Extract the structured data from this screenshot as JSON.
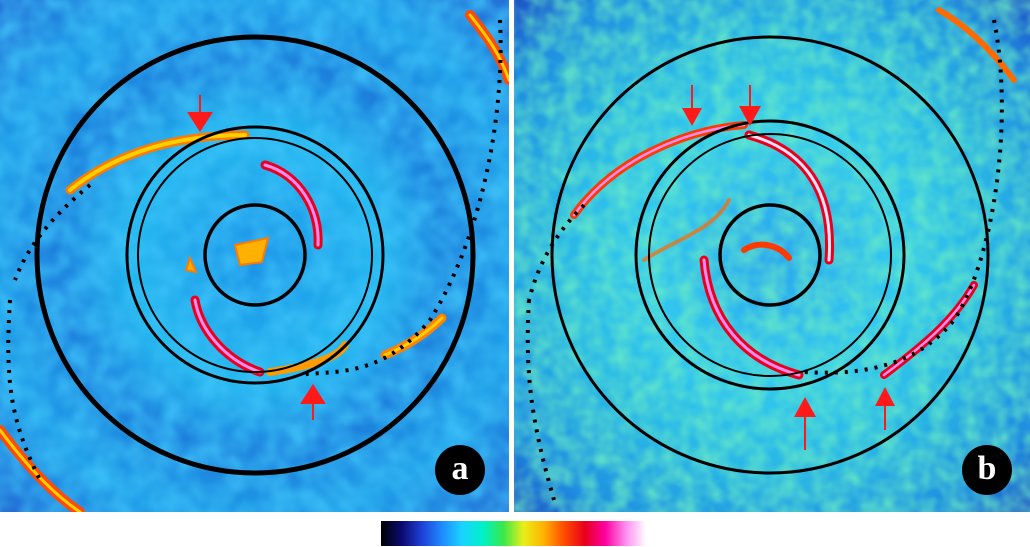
{
  "panels": [
    {
      "id": "a",
      "label": "a"
    },
    {
      "id": "b",
      "label": "b"
    }
  ],
  "colormap": [
    "#000000",
    "#0a0a6e",
    "#1f3fd6",
    "#1f8bff",
    "#19d4ff",
    "#00f0c8",
    "#39e84a",
    "#e9ef1a",
    "#ffb000",
    "#ff4a00",
    "#e8001c",
    "#ff00a0",
    "#ff8cf0",
    "#ffffff"
  ],
  "colors": {
    "arrow": "#ff1a1a",
    "circle": "#000000",
    "divider": "#ffffff"
  }
}
